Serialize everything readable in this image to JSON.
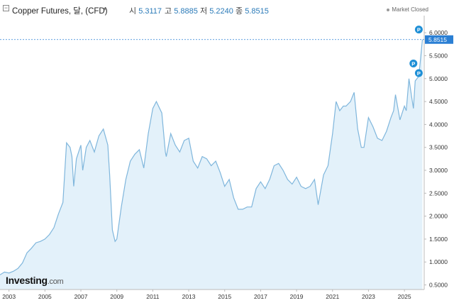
{
  "header": {
    "title": "Copper Futures, 달, (CFD)",
    "open_label": "시",
    "open_value": "5.3117",
    "high_label": "고",
    "high_value": "5.8885",
    "low_label": "저",
    "low_value": "5.2240",
    "close_label": "종",
    "close_value": "5.8515",
    "market_status": "Market Closed"
  },
  "logo": {
    "brand": "Investing",
    "suffix": ".com"
  },
  "colors": {
    "line": "#7fb6dc",
    "fill": "#e3f1fa",
    "price_badge": "#2a7fd4",
    "marker": "#1e8fd6"
  },
  "chart_data": {
    "type": "area",
    "title": "Copper Futures, 달, (CFD)",
    "xlabel": "",
    "ylabel": "",
    "ylim": [
      0.4,
      6.25
    ],
    "xlim": [
      2002.5,
      2026.1
    ],
    "grid": false,
    "current_price": "5.8515",
    "x_ticks": [
      "2003",
      "2005",
      "2007",
      "2009",
      "2011",
      "2013",
      "2015",
      "2017",
      "2019",
      "2021",
      "2023",
      "2025"
    ],
    "y_ticks": [
      "0.5000",
      "1.0000",
      "1.5000",
      "2.0000",
      "2.5000",
      "3.0000",
      "3.5000",
      "4.0000",
      "4.5000",
      "5.0000",
      "5.5000",
      "6.0000"
    ],
    "event_markers": [
      {
        "x": 2025.8,
        "y": 6.07
      },
      {
        "x": 2025.5,
        "y": 5.33
      },
      {
        "x": 2025.8,
        "y": 5.12
      }
    ],
    "series": [
      {
        "x": [
          2002.5,
          2002.75,
          2003.0,
          2003.25,
          2003.5,
          2003.75,
          2004.0,
          2004.25,
          2004.5,
          2004.75,
          2005.0,
          2005.25,
          2005.5,
          2005.75,
          2006.0,
          2006.2,
          2006.4,
          2006.5,
          2006.6,
          2006.75,
          2007.0,
          2007.1,
          2007.3,
          2007.5,
          2007.75,
          2008.0,
          2008.25,
          2008.5,
          2008.6,
          2008.75,
          2008.9,
          2009.0,
          2009.25,
          2009.5,
          2009.75,
          2010.0,
          2010.25,
          2010.5,
          2010.75,
          2011.0,
          2011.2,
          2011.5,
          2011.7,
          2011.75,
          2012.0,
          2012.25,
          2012.5,
          2012.75,
          2013.0,
          2013.25,
          2013.5,
          2013.75,
          2014.0,
          2014.25,
          2014.5,
          2014.75,
          2015.0,
          2015.25,
          2015.5,
          2015.75,
          2016.0,
          2016.25,
          2016.5,
          2016.75,
          2017.0,
          2017.25,
          2017.5,
          2017.75,
          2018.0,
          2018.25,
          2018.5,
          2018.75,
          2019.0,
          2019.25,
          2019.5,
          2019.75,
          2020.0,
          2020.2,
          2020.5,
          2020.75,
          2021.0,
          2021.2,
          2021.4,
          2021.6,
          2021.75,
          2022.0,
          2022.2,
          2022.4,
          2022.6,
          2022.75,
          2023.0,
          2023.25,
          2023.5,
          2023.75,
          2024.0,
          2024.25,
          2024.4,
          2024.5,
          2024.75,
          2025.0,
          2025.1,
          2025.25,
          2025.4,
          2025.5,
          2025.6,
          2025.8,
          2026.0
        ],
        "y": [
          0.72,
          0.78,
          0.76,
          0.8,
          0.86,
          0.98,
          1.2,
          1.3,
          1.42,
          1.45,
          1.5,
          1.6,
          1.75,
          2.05,
          2.3,
          3.6,
          3.5,
          3.3,
          2.65,
          3.25,
          3.55,
          3.0,
          3.5,
          3.65,
          3.4,
          3.75,
          3.9,
          3.55,
          2.9,
          1.7,
          1.45,
          1.5,
          2.2,
          2.8,
          3.2,
          3.35,
          3.45,
          3.05,
          3.8,
          4.35,
          4.5,
          4.25,
          3.4,
          3.3,
          3.8,
          3.55,
          3.4,
          3.65,
          3.7,
          3.2,
          3.05,
          3.3,
          3.25,
          3.1,
          3.2,
          2.95,
          2.65,
          2.8,
          2.4,
          2.15,
          2.15,
          2.2,
          2.2,
          2.6,
          2.75,
          2.6,
          2.8,
          3.1,
          3.15,
          3.0,
          2.8,
          2.7,
          2.85,
          2.65,
          2.6,
          2.65,
          2.8,
          2.25,
          2.9,
          3.1,
          3.8,
          4.5,
          4.3,
          4.4,
          4.4,
          4.5,
          4.7,
          3.9,
          3.5,
          3.5,
          4.15,
          3.95,
          3.7,
          3.65,
          3.85,
          4.15,
          4.3,
          4.65,
          4.1,
          4.4,
          4.3,
          5.0,
          4.6,
          4.35,
          4.95,
          5.05,
          5.85
        ]
      }
    ]
  }
}
